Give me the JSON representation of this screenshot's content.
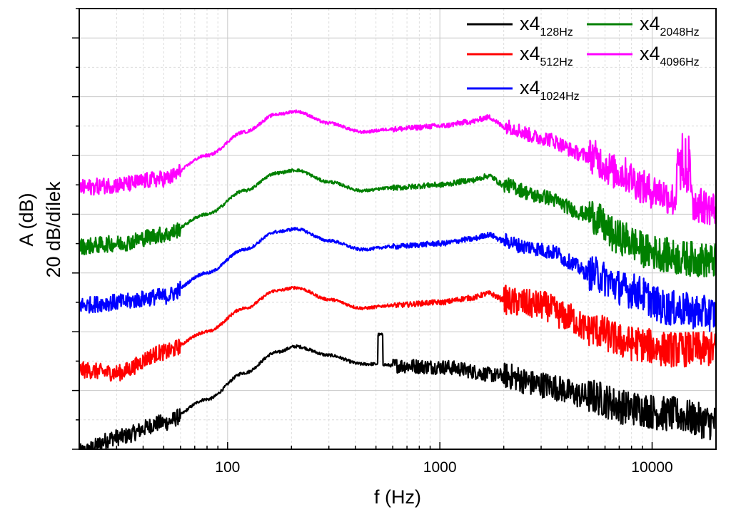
{
  "chart_data": {
    "type": "line",
    "title": "",
    "xlabel": "f (Hz)",
    "ylabel": "A (dB)",
    "ylabel_scale": "20 dB/dílek",
    "x_scale": "log",
    "xlim": [
      20,
      20000
    ],
    "ylim": [
      0,
      150
    ],
    "y_tick_step": 10,
    "y_tick_labels_shown": false,
    "x_ticks": [
      100,
      1000,
      10000
    ],
    "x_tick_labels": [
      "100",
      "1000",
      "10000"
    ],
    "grid": true,
    "legend": "top-right",
    "series": [
      {
        "name": "x4",
        "sub": "128Hz",
        "color": "#000000",
        "x": [
          20,
          30,
          50,
          80,
          120,
          170,
          210,
          300,
          430,
          520,
          600,
          1000,
          2000,
          3000,
          5000,
          8000,
          12000,
          20000
        ],
        "y": [
          -1,
          4,
          9,
          17,
          26,
          33,
          35,
          32,
          29,
          29,
          28.5,
          28,
          25,
          22,
          18,
          14,
          12,
          9
        ]
      },
      {
        "name": "x4",
        "sub": "512Hz",
        "color": "#ff0000",
        "x": [
          20,
          30,
          50,
          80,
          120,
          170,
          210,
          300,
          430,
          600,
          1000,
          1400,
          1700,
          2000,
          2200,
          3000,
          4000,
          5000,
          8000,
          12000,
          20000
        ],
        "y": [
          27,
          26,
          33,
          40,
          48,
          54,
          55,
          51,
          48,
          49,
          50,
          51.5,
          53,
          51,
          50,
          49,
          45,
          41,
          36,
          34,
          34
        ]
      },
      {
        "name": "x4",
        "sub": "1024Hz",
        "color": "#0000ff",
        "x": [
          20,
          30,
          50,
          80,
          120,
          170,
          210,
          300,
          430,
          600,
          1000,
          1400,
          1700,
          2000,
          2500,
          3500,
          4000,
          5000,
          8000,
          12000,
          20000
        ],
        "y": [
          49,
          50,
          52,
          60,
          68,
          74,
          75,
          71,
          68,
          69,
          70,
          71.5,
          73,
          71,
          69,
          67,
          64,
          60,
          54,
          48,
          46
        ]
      },
      {
        "name": "x4",
        "sub": "2048Hz",
        "color": "#008000",
        "x": [
          20,
          30,
          50,
          80,
          120,
          170,
          210,
          300,
          430,
          600,
          1000,
          1400,
          1700,
          2000,
          3000,
          5000,
          7000,
          10000,
          14000,
          20000
        ],
        "y": [
          69,
          70,
          73,
          80,
          88,
          94,
          95,
          91,
          88,
          89,
          90,
          91.5,
          93,
          90,
          86,
          80,
          72,
          67,
          65,
          64
        ]
      },
      {
        "name": "x4",
        "sub": "4096Hz",
        "color": "#ff00ff",
        "x": [
          20,
          30,
          50,
          80,
          120,
          170,
          210,
          300,
          430,
          600,
          1000,
          1400,
          1700,
          2000,
          3000,
          5000,
          7000,
          10000,
          14000,
          20000
        ],
        "y": [
          89,
          90,
          92,
          100,
          108,
          114,
          115,
          111,
          108,
          109,
          110,
          111.5,
          113,
          110,
          106,
          100,
          94,
          88,
          84,
          82
        ]
      }
    ]
  }
}
